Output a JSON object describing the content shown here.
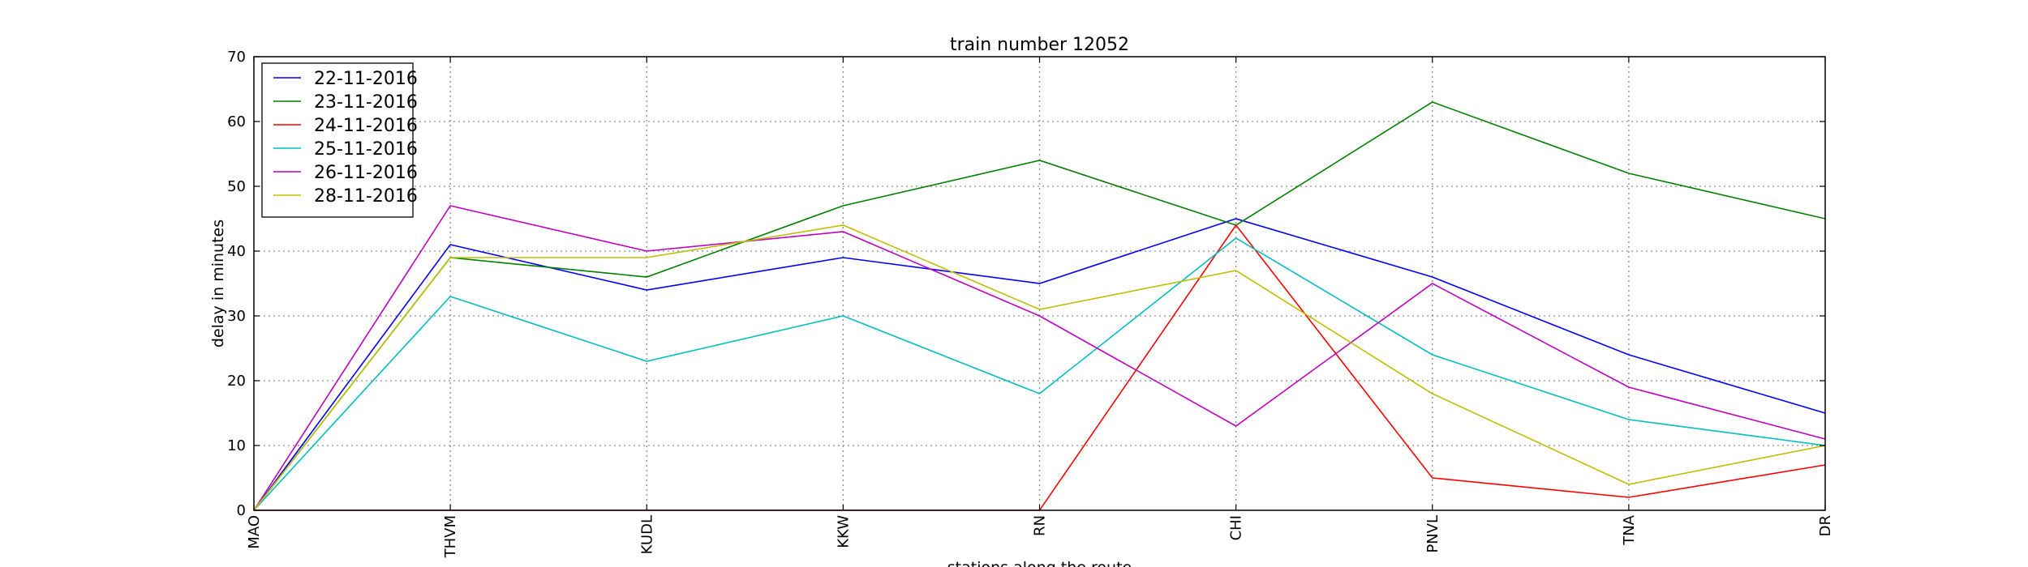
{
  "chart_data": {
    "type": "line",
    "title": "train number 12052",
    "xlabel": "stations along the route",
    "ylabel": "delay in minutes",
    "categories": [
      "MAO",
      "THVM",
      "KUDL",
      "KKW",
      "RN",
      "CHI",
      "PNVL",
      "TNA",
      "DR"
    ],
    "ylim": [
      0,
      70
    ],
    "yticks": [
      0,
      10,
      20,
      30,
      40,
      50,
      60,
      70
    ],
    "grid": true,
    "legend_position": "top-left",
    "series": [
      {
        "name": "22-11-2016",
        "color": "#0000ff",
        "values": [
          0,
          41,
          34,
          39,
          35,
          45,
          36,
          24,
          15
        ]
      },
      {
        "name": "23-11-2016",
        "color": "#008000",
        "values": [
          0,
          39,
          36,
          47,
          54,
          44,
          63,
          52,
          45
        ]
      },
      {
        "name": "24-11-2016",
        "color": "#ff0000",
        "values": [
          0,
          0,
          0,
          0,
          0,
          44,
          5,
          2,
          7
        ]
      },
      {
        "name": "25-11-2016",
        "color": "#00bfbf",
        "values": [
          0,
          33,
          23,
          30,
          18,
          42,
          24,
          14,
          10
        ]
      },
      {
        "name": "26-11-2016",
        "color": "#bf00bf",
        "values": [
          0,
          47,
          40,
          43,
          30,
          13,
          35,
          19,
          11
        ]
      },
      {
        "name": "28-11-2016",
        "color": "#bfbf00",
        "values": [
          0,
          39,
          39,
          44,
          31,
          37,
          18,
          4,
          10
        ]
      }
    ]
  }
}
